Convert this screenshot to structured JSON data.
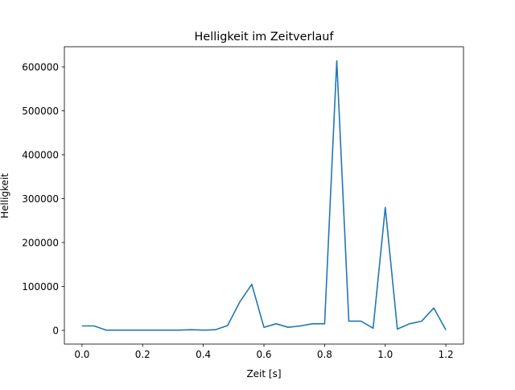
{
  "chart_data": {
    "type": "line",
    "title": "Helligkeit im Zeitverlauf",
    "xlabel": "Zeit [s]",
    "ylabel": "Helligkeit",
    "xlim": [
      -0.058,
      1.258
    ],
    "ylim": [
      -31200,
      645900
    ],
    "xticks": [
      0.0,
      0.2,
      0.4,
      0.6,
      0.8,
      1.0,
      1.2
    ],
    "xtick_labels": [
      "0.0",
      "0.2",
      "0.4",
      "0.6",
      "0.8",
      "1.0",
      "1.2"
    ],
    "yticks": [
      0,
      100000,
      200000,
      300000,
      400000,
      500000,
      600000
    ],
    "ytick_labels": [
      "0",
      "100000",
      "200000",
      "300000",
      "400000",
      "500000",
      "600000"
    ],
    "grid": false,
    "series": [
      {
        "name": "Helligkeit",
        "color": "#1f77b4",
        "x": [
          0.0,
          0.04,
          0.08,
          0.12,
          0.16,
          0.2,
          0.24,
          0.28,
          0.32,
          0.36,
          0.4,
          0.44,
          0.48,
          0.52,
          0.56,
          0.6,
          0.64,
          0.68,
          0.72,
          0.76,
          0.8,
          0.84,
          0.88,
          0.92,
          0.96,
          1.0,
          1.04,
          1.08,
          1.12,
          1.16,
          1.2
        ],
        "y": [
          10000,
          10000,
          500,
          500,
          500,
          500,
          500,
          500,
          500,
          1500,
          500,
          1500,
          11000,
          64000,
          105000,
          7000,
          15000,
          7000,
          10000,
          15000,
          15000,
          614000,
          21000,
          21000,
          5000,
          280000,
          3000,
          15000,
          21000,
          51000,
          1000
        ]
      }
    ]
  }
}
